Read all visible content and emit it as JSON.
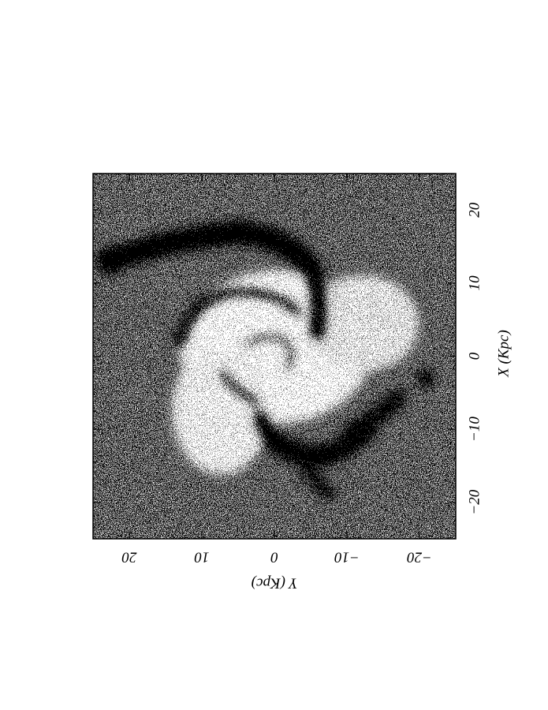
{
  "chart_data": {
    "type": "image",
    "x_label": "X (Kpc)",
    "y_label": "Y (Kpc)",
    "xlim": [
      -25,
      25
    ],
    "ylim": [
      25,
      -25
    ],
    "xticks": [
      {
        "value": -20,
        "label": "−20"
      },
      {
        "value": -10,
        "label": "−10"
      },
      0,
      10,
      20
    ],
    "yticks": [
      20,
      10,
      0,
      {
        "value": -10,
        "label": "−10"
      },
      {
        "value": -20,
        "label": "−20"
      }
    ]
  }
}
